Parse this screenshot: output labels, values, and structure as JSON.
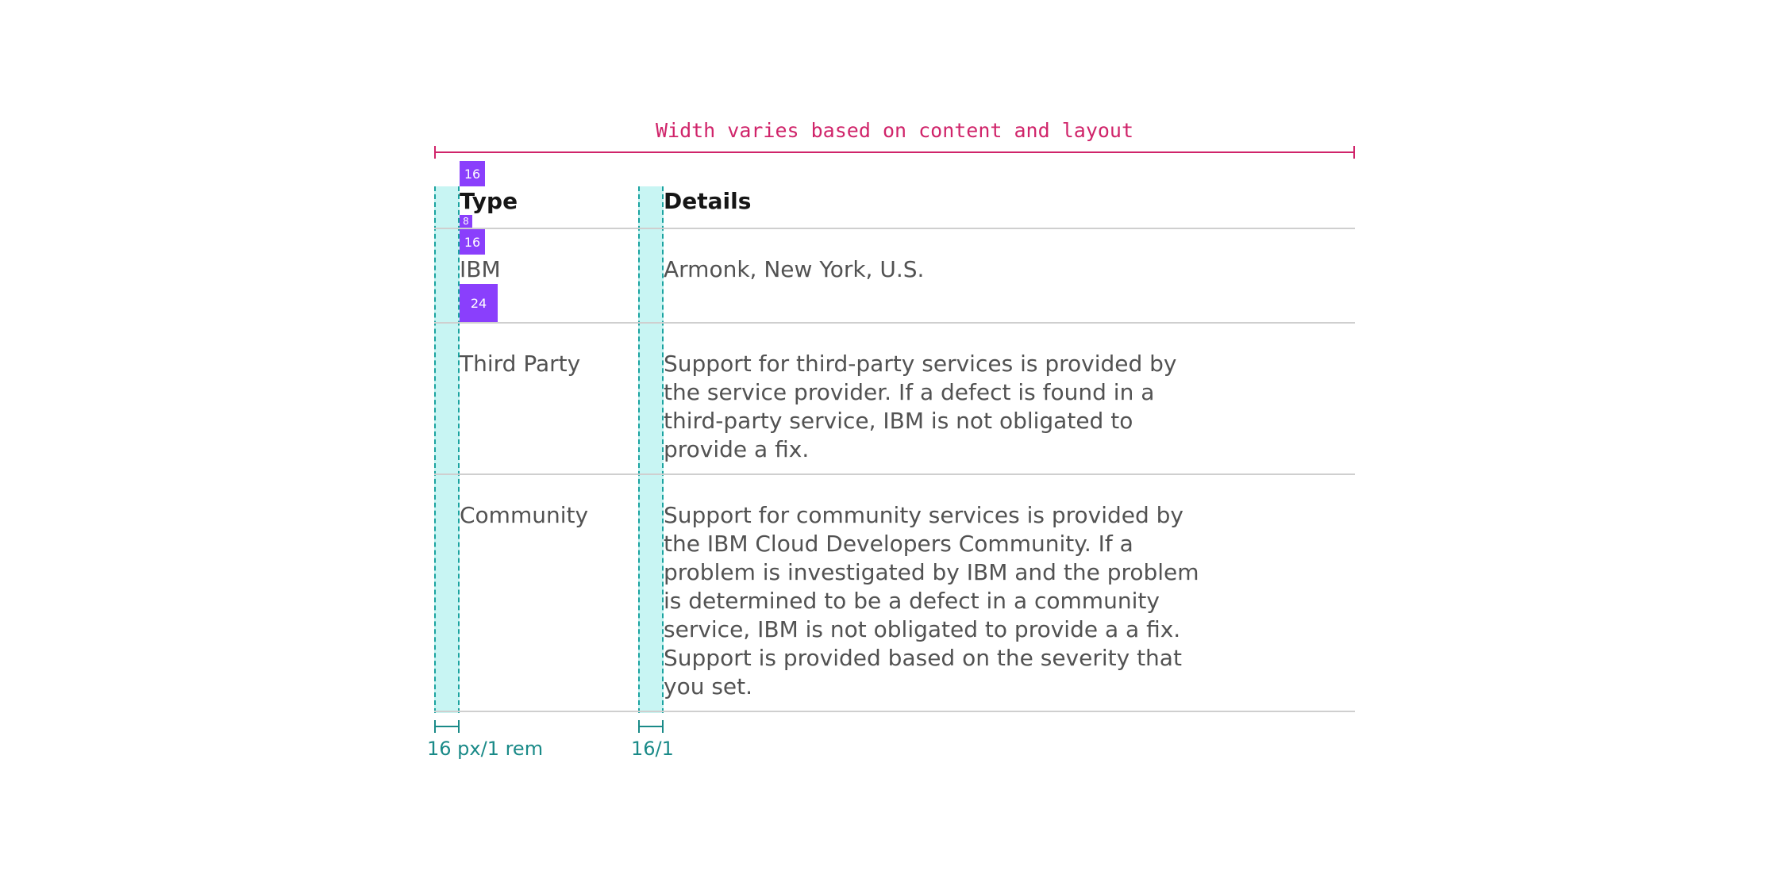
{
  "annotation": {
    "width_label": "Width varies based on content and layout"
  },
  "table": {
    "headers": [
      "Type",
      "Details"
    ],
    "rows": [
      {
        "type": "IBM",
        "details": "Armonk, New York, U.S."
      },
      {
        "type": "Third Party",
        "details": "Support for third-party services is provided by the service provider. If a defect is found in a third-party service, IBM is not obligated to provide a fix."
      },
      {
        "type": "Community",
        "details": "Support for community services is provided by the IBM Cloud Developers Community. If a problem is investigated by IBM and the problem is determined to be a defect in a community service, IBM is not obligated to provide a a fix. Support is provided based on the severity that you set."
      }
    ]
  },
  "spacing_badges": [
    "16",
    "8",
    "16",
    "24"
  ],
  "measurements": [
    "16 px/1 rem",
    "16/1"
  ],
  "colors": {
    "width_annotation": "#d0246a",
    "padding_fill": "#c8f5f3",
    "padding_border": "#1aa3a0",
    "spacing_badge": "#8a3ffc",
    "measure": "#1a8a88",
    "divider": "#cfcfcf"
  }
}
